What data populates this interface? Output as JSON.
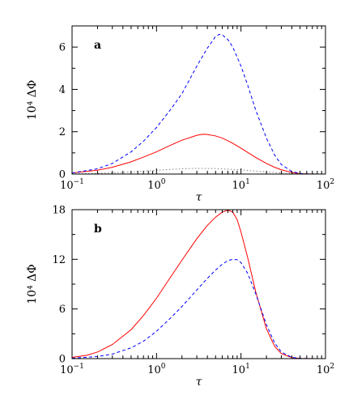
{
  "chart_data": [
    {
      "type": "line",
      "panel_label": "a",
      "xlabel": "τ",
      "ylabel": "10⁴ ΔΦ",
      "xscale": "log",
      "xlim": [
        0.1,
        100
      ],
      "ylim": [
        0,
        7
      ],
      "x_ticks": [
        {
          "value": 0.1,
          "base": "10",
          "exp": "−1"
        },
        {
          "value": 1,
          "base": "10",
          "exp": "0"
        },
        {
          "value": 10,
          "base": "10",
          "exp": "1"
        },
        {
          "value": 100,
          "base": "10",
          "exp": "2"
        }
      ],
      "y_ticks": [
        0,
        2,
        4,
        6
      ],
      "series": [
        {
          "color": "#ff0000",
          "style": "solid",
          "x": [
            0.1,
            0.2,
            0.3,
            0.5,
            0.7,
            1,
            1.5,
            2,
            3,
            3.5,
            4,
            5,
            6,
            7,
            8,
            10,
            12,
            15,
            20,
            25,
            30,
            40,
            50,
            60,
            80,
            100
          ],
          "y": [
            0.05,
            0.18,
            0.32,
            0.58,
            0.8,
            1.05,
            1.38,
            1.6,
            1.83,
            1.88,
            1.87,
            1.8,
            1.7,
            1.57,
            1.45,
            1.22,
            1.02,
            0.78,
            0.5,
            0.32,
            0.2,
            0.07,
            0.02,
            0.008,
            0.002,
            0
          ]
        },
        {
          "color": "#0000ff",
          "style": "dashed",
          "x": [
            0.1,
            0.2,
            0.3,
            0.5,
            0.7,
            1,
            1.5,
            2,
            3,
            4,
            5,
            5.5,
            6,
            7,
            8,
            10,
            12,
            15,
            20,
            25,
            30,
            40,
            50,
            60,
            80,
            100
          ],
          "y": [
            0.05,
            0.25,
            0.5,
            1.05,
            1.55,
            2.2,
            3.1,
            3.8,
            5.1,
            5.95,
            6.5,
            6.6,
            6.58,
            6.35,
            6.0,
            5.1,
            4.2,
            3.0,
            1.7,
            0.9,
            0.45,
            0.12,
            0.03,
            0.01,
            0.002,
            0
          ]
        },
        {
          "color": "#808080",
          "style": "dotted",
          "x": [
            0.1,
            0.3,
            0.5,
            1,
            2,
            3,
            5,
            8,
            10,
            15,
            20,
            30,
            40,
            60,
            100
          ],
          "y": [
            0.01,
            0.05,
            0.1,
            0.18,
            0.25,
            0.27,
            0.26,
            0.22,
            0.2,
            0.14,
            0.1,
            0.05,
            0.02,
            0.005,
            0
          ]
        }
      ]
    },
    {
      "type": "line",
      "panel_label": "b",
      "xlabel": "τ",
      "ylabel": "10⁴ ΔΦ",
      "xscale": "log",
      "xlim": [
        0.1,
        100
      ],
      "ylim": [
        0,
        18
      ],
      "x_ticks": [
        {
          "value": 0.1,
          "base": "10",
          "exp": "−1"
        },
        {
          "value": 1,
          "base": "10",
          "exp": "0"
        },
        {
          "value": 10,
          "base": "10",
          "exp": "1"
        },
        {
          "value": 100,
          "base": "10",
          "exp": "2"
        }
      ],
      "y_ticks": [
        0,
        6,
        12,
        18
      ],
      "series": [
        {
          "color": "#ff0000",
          "style": "solid",
          "x": [
            0.1,
            0.15,
            0.2,
            0.3,
            0.5,
            0.7,
            1,
            1.5,
            2,
            3,
            4,
            5,
            6,
            7,
            8,
            9,
            10,
            12,
            15,
            20,
            25,
            30,
            40,
            50,
            60,
            80,
            100
          ],
          "y": [
            0.15,
            0.4,
            0.8,
            1.7,
            3.5,
            5.2,
            7.3,
            10.0,
            11.9,
            14.5,
            16.1,
            17.1,
            17.7,
            17.95,
            17.7,
            16.8,
            15.3,
            12.2,
            8.0,
            3.6,
            1.5,
            0.6,
            0.12,
            0.03,
            0.01,
            0.002,
            0
          ]
        },
        {
          "color": "#0000ff",
          "style": "dashed",
          "x": [
            0.1,
            0.2,
            0.3,
            0.5,
            0.7,
            1,
            1.5,
            2,
            3,
            4,
            5,
            6,
            7,
            8,
            9,
            10,
            12,
            15,
            20,
            25,
            30,
            40,
            50,
            60,
            80,
            100
          ],
          "y": [
            0.05,
            0.25,
            0.55,
            1.3,
            2.1,
            3.3,
            5.0,
            6.3,
            8.3,
            9.7,
            10.7,
            11.4,
            11.85,
            12.0,
            11.95,
            11.6,
            10.3,
            7.8,
            4.1,
            1.9,
            0.8,
            0.15,
            0.04,
            0.01,
            0.002,
            0
          ]
        }
      ]
    }
  ]
}
